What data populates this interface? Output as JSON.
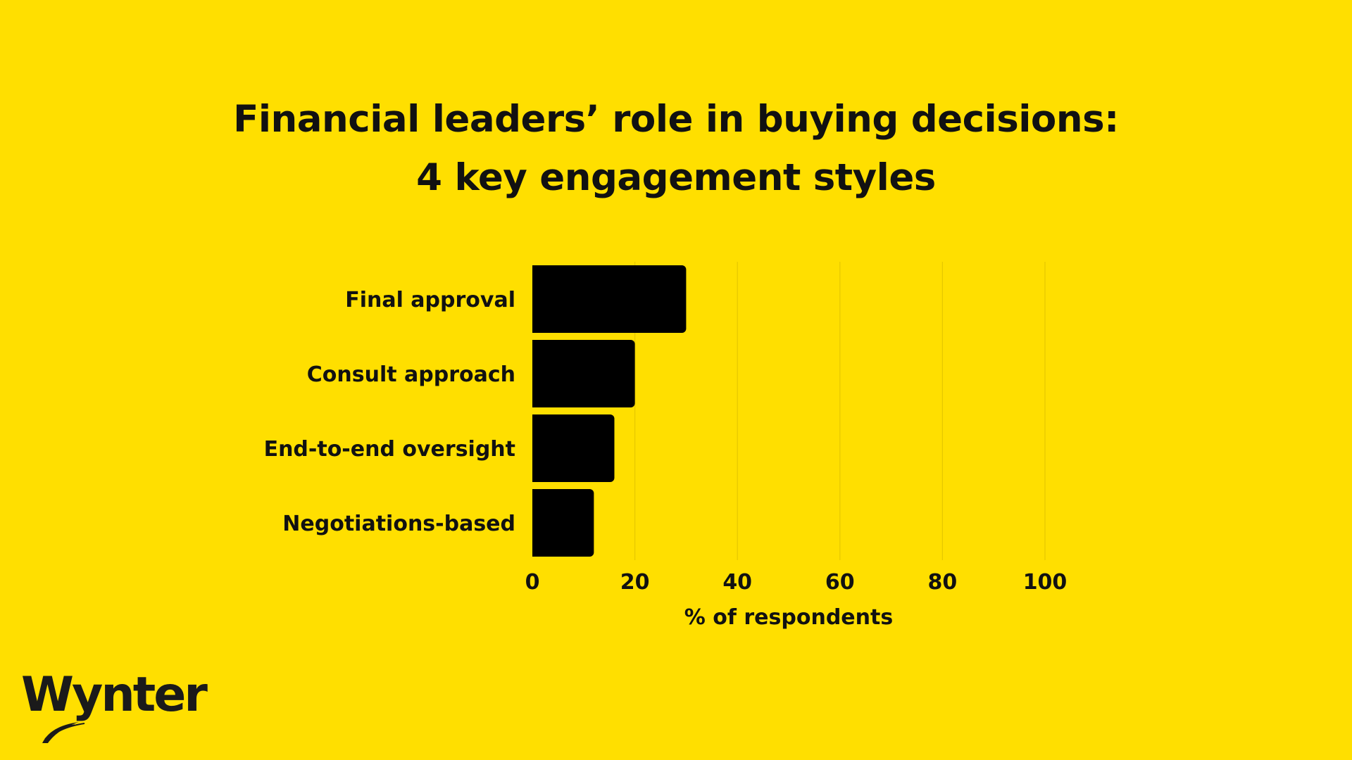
{
  "chart_data": {
    "type": "bar",
    "orientation": "horizontal",
    "title_lines": [
      "Financial leaders’ role in buying decisions:",
      "4 key engagement styles"
    ],
    "categories": [
      "Final approval",
      "Consult approach",
      "End-to-end oversight",
      "Negotiations-based"
    ],
    "values": [
      30,
      20,
      16,
      12
    ],
    "xlabel": "% of respondents",
    "ylabel": "",
    "xlim": [
      0,
      100
    ],
    "xticks": [
      0,
      20,
      40,
      60,
      80,
      100
    ],
    "xtick_labels": [
      "0",
      "20",
      "40",
      "60",
      "80",
      "100"
    ],
    "grid": "vertical",
    "bar_color": "#000000",
    "background_color": "#FFDF00"
  },
  "brand": {
    "logo_text": "Wynter"
  }
}
